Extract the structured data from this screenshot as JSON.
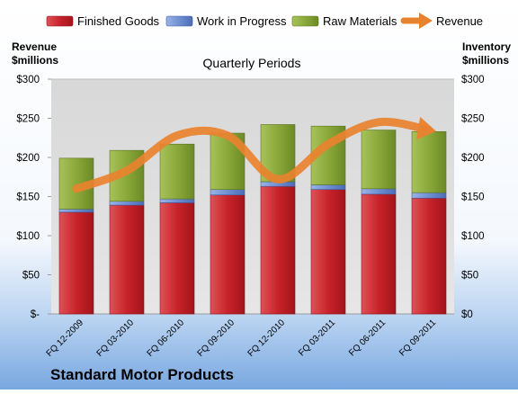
{
  "chart_data": {
    "type": "bar",
    "subtype": "stacked-bar-with-line",
    "title": "Quarterly Periods",
    "company": "Standard Motor Products",
    "left_axis_label": [
      "Revenue",
      "$millions"
    ],
    "right_axis_label": [
      "Inventory",
      "$millions"
    ],
    "ylim": [
      0,
      300
    ],
    "y_ticks_left": [
      "$-",
      "$50",
      "$100",
      "$150",
      "$200",
      "$250",
      "$300"
    ],
    "y_ticks_right": [
      "$0",
      "$50",
      "$100",
      "$150",
      "$200",
      "$250",
      "$300"
    ],
    "y_tick_values": [
      0,
      50,
      100,
      150,
      200,
      250,
      300
    ],
    "grid": false,
    "legend_position": "top",
    "categories": [
      "FQ 12-2009",
      "FQ 03-2010",
      "FQ 06-2010",
      "FQ 09-2010",
      "FQ 12-2010",
      "FQ 03-2011",
      "FQ 06-2011",
      "FQ 09-2011"
    ],
    "series": [
      {
        "name": "Finished Goods",
        "kind": "bar",
        "color": "#c8232b",
        "values": [
          130,
          139,
          142,
          152,
          163,
          159,
          153,
          148
        ]
      },
      {
        "name": "Work in Progress",
        "kind": "bar",
        "color": "#6f8fd3",
        "values": [
          4,
          5,
          5,
          7,
          6,
          6,
          7,
          7
        ]
      },
      {
        "name": "Raw Materials",
        "kind": "bar",
        "color": "#8aa83a",
        "values": [
          65,
          65,
          70,
          72,
          73,
          75,
          75,
          78
        ]
      },
      {
        "name": "Revenue",
        "kind": "line",
        "color": "#e9822f",
        "values": [
          160,
          183,
          228,
          228,
          172,
          217,
          245,
          235
        ]
      }
    ]
  }
}
